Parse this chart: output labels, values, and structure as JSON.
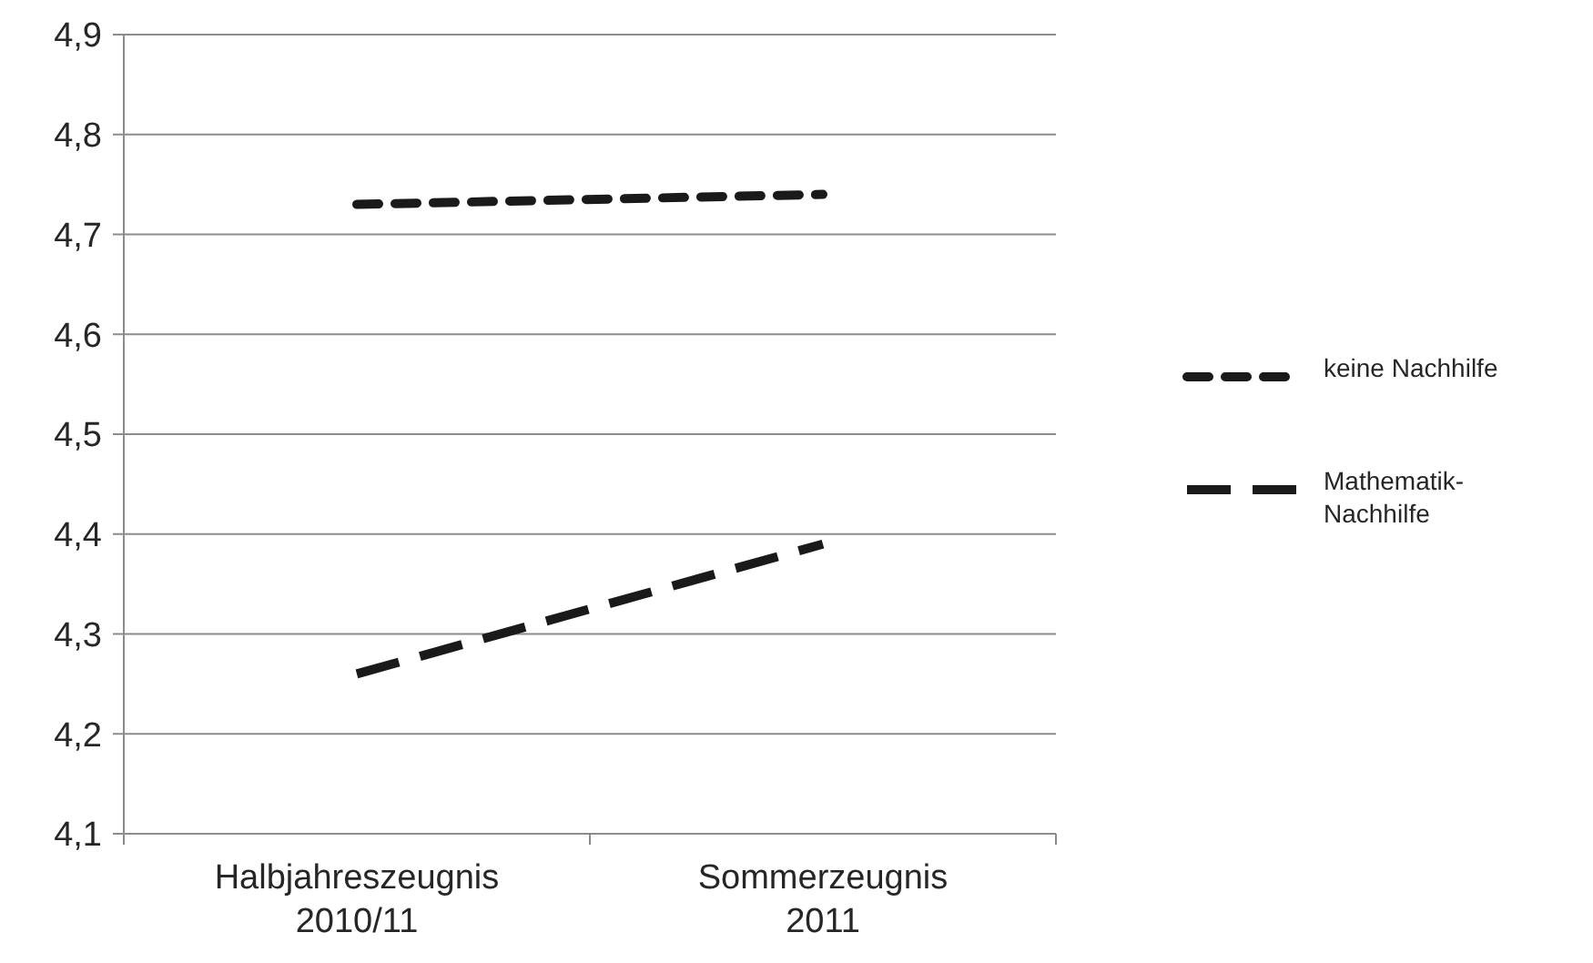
{
  "chart_data": {
    "type": "line",
    "categories": [
      "Halbjahreszeugnis 2010/11",
      "Sommerzeugnis 2011"
    ],
    "series": [
      {
        "name": "keine Nachhilfe",
        "color": "#1a1a1a",
        "values": [
          4.73,
          4.74
        ],
        "line_style": "dotted"
      },
      {
        "name": "Mathematik-Nachhilfe",
        "color": "#1a1a1a",
        "values": [
          4.26,
          4.39
        ],
        "line_style": "dashed"
      }
    ],
    "ylim": [
      4.1,
      4.9
    ],
    "yticks": [
      {
        "value": 4.1,
        "label": "4,1"
      },
      {
        "value": 4.2,
        "label": "4,2"
      },
      {
        "value": 4.3,
        "label": "4,3"
      },
      {
        "value": 4.4,
        "label": "4,4"
      },
      {
        "value": 4.5,
        "label": "4,5"
      },
      {
        "value": 4.6,
        "label": "4,6"
      },
      {
        "value": 4.7,
        "label": "4,7"
      },
      {
        "value": 4.8,
        "label": "4,8"
      },
      {
        "value": 4.9,
        "label": "4,9"
      }
    ],
    "grid": "y",
    "legend": "right",
    "marker": "none"
  }
}
